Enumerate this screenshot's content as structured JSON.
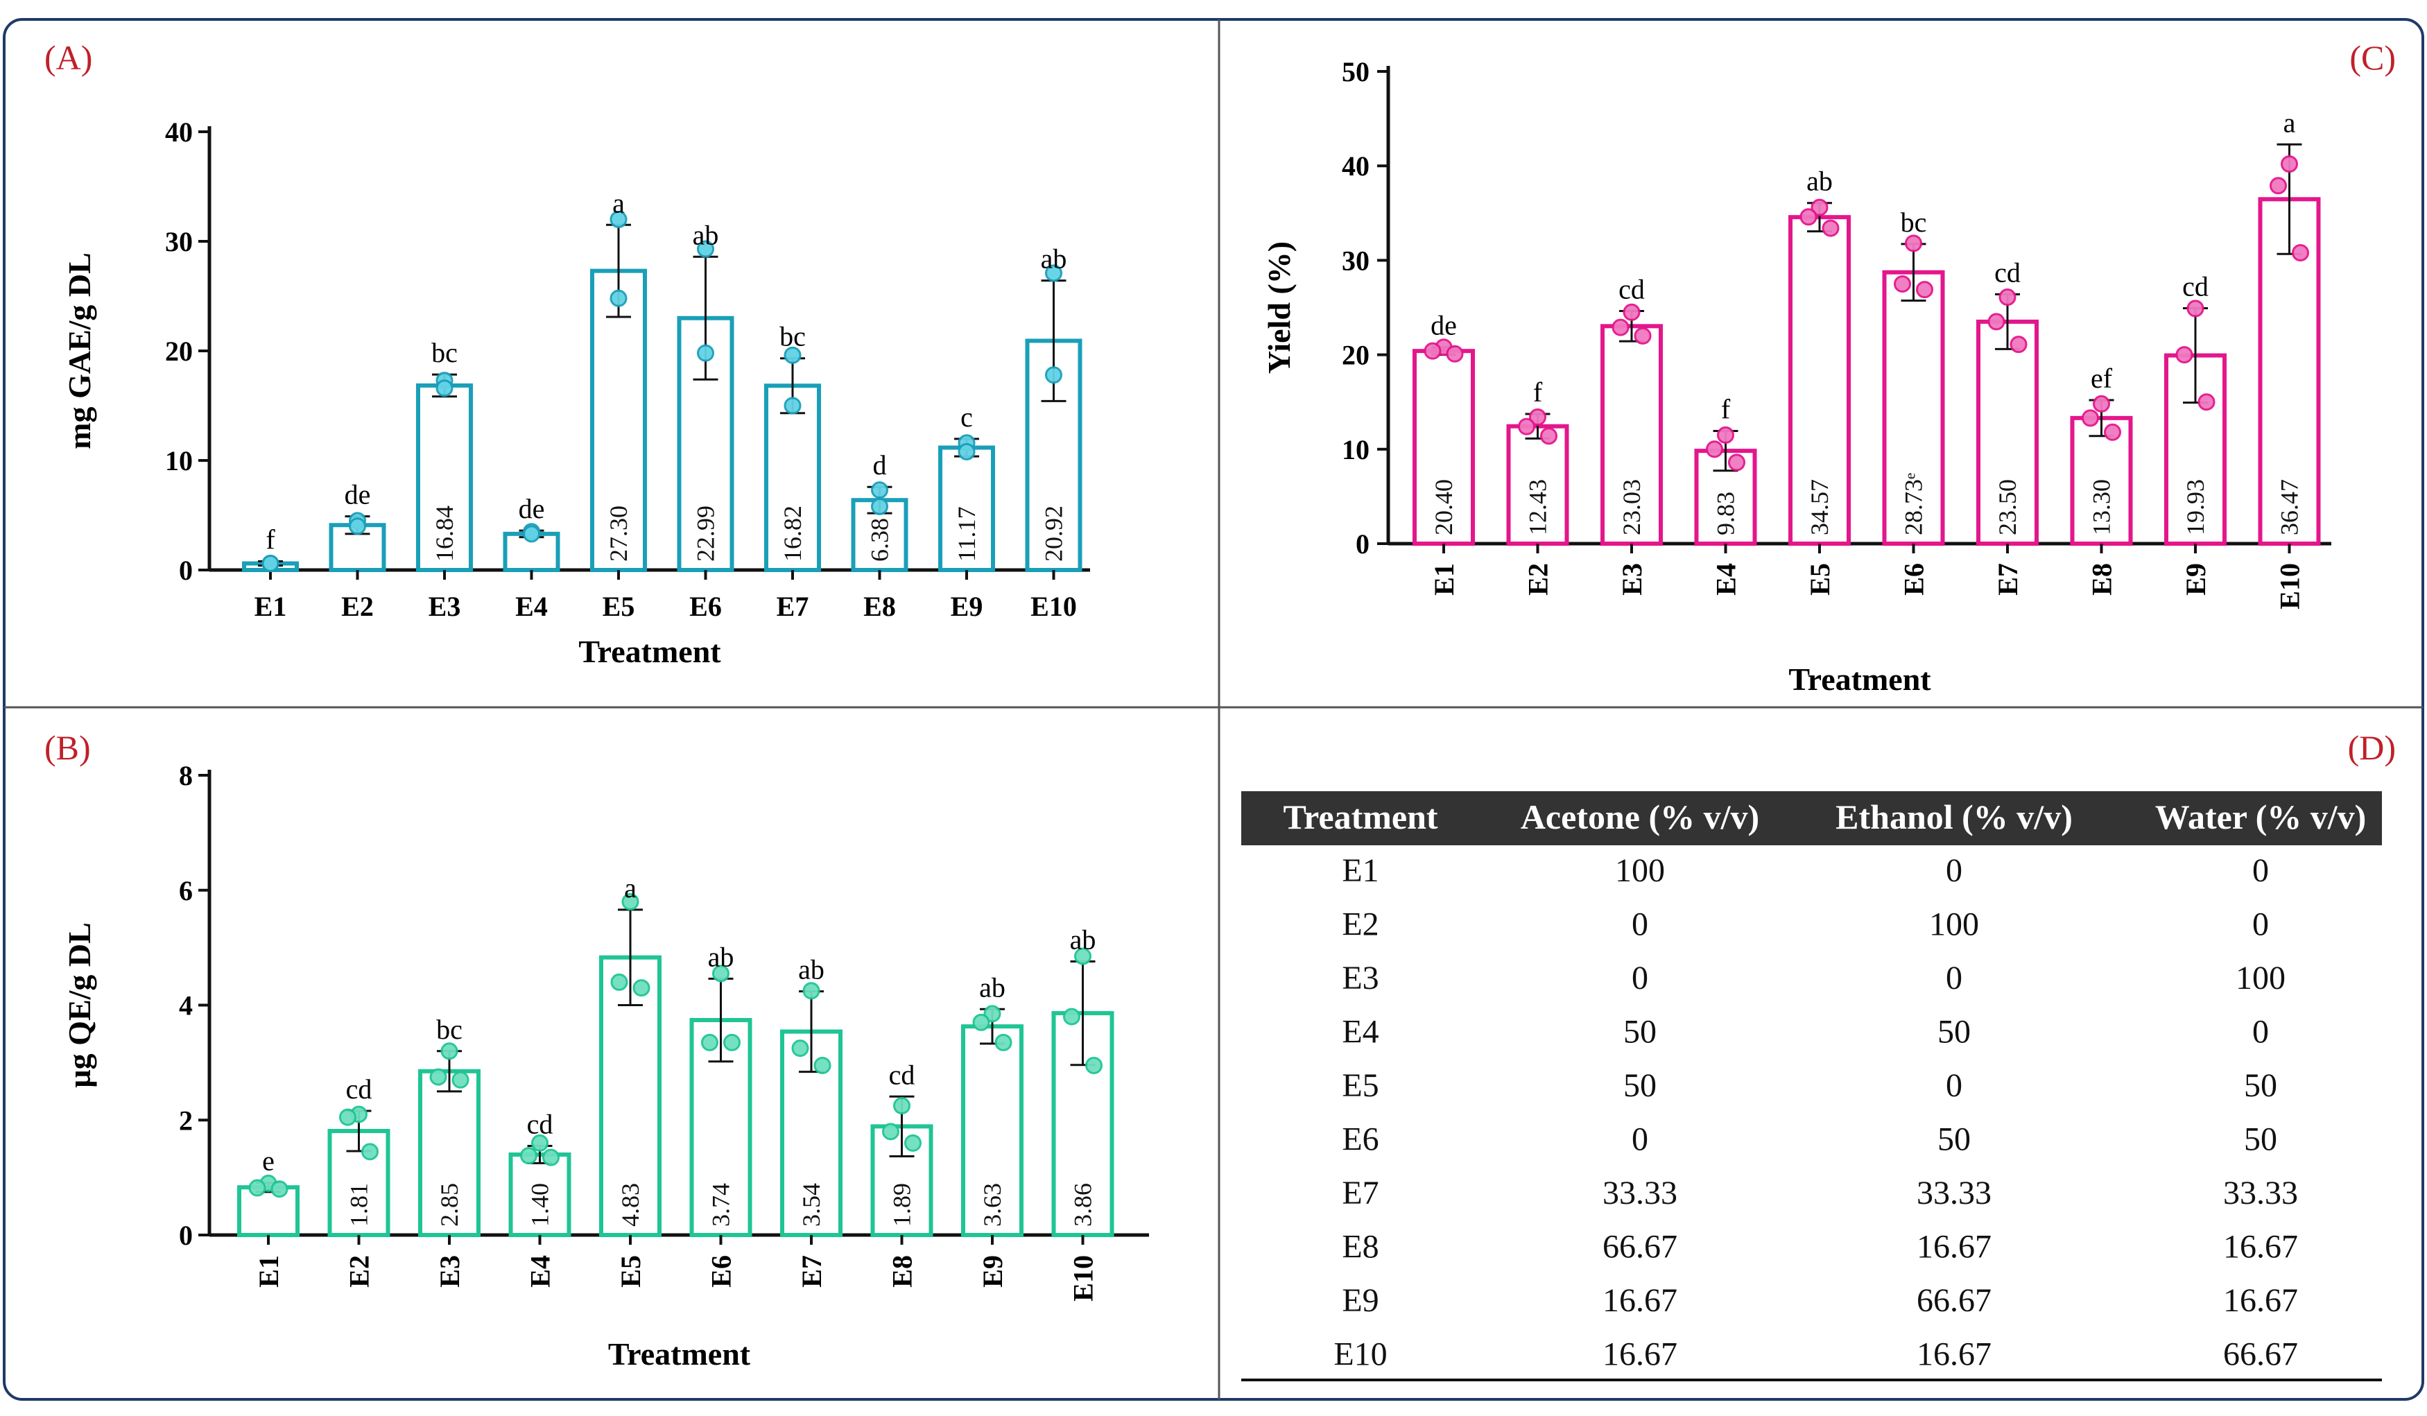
{
  "panels": {
    "A": {
      "tag": "(A)"
    },
    "B": {
      "tag": "(B)"
    },
    "C": {
      "tag": "(C)"
    },
    "D": {
      "tag": "(D)"
    }
  },
  "colors": {
    "frame": "#1f3a66",
    "tag": "#c0202a",
    "A": "#1a9fb8",
    "B": "#1fc594",
    "C": "#e4168c",
    "table_header": "#333333"
  },
  "chart_data": [
    {
      "id": "A",
      "type": "bar",
      "title": "",
      "xlabel": "Treatment",
      "ylabel": "mg GAE/g DL",
      "categories": [
        "E1",
        "E2",
        "E3",
        "E4",
        "E5",
        "E6",
        "E7",
        "E8",
        "E9",
        "E10"
      ],
      "values": [
        0.6,
        4.1,
        16.84,
        3.3,
        27.3,
        22.99,
        16.82,
        6.38,
        11.17,
        20.92
      ],
      "error": [
        0.2,
        0.8,
        1.0,
        0.3,
        4.2,
        5.6,
        2.5,
        1.2,
        0.8,
        5.5
      ],
      "value_labels": [
        "",
        "",
        "16.84",
        "",
        "27.30",
        "22.99",
        "16.82",
        "6.38",
        "11.17",
        "20.92"
      ],
      "letters": [
        "f",
        "de",
        "bc",
        "de",
        "a",
        "ab",
        "bc",
        "d",
        "c",
        "ab"
      ],
      "points": [
        [
          0.6,
          0.6
        ],
        [
          4.5,
          4.0
        ],
        [
          17.3,
          16.6
        ],
        [
          3.5,
          3.3
        ],
        [
          32.0,
          24.8
        ],
        [
          29.3,
          19.8
        ],
        [
          19.6,
          15.0
        ],
        [
          7.3,
          5.8
        ],
        [
          11.6,
          10.8
        ],
        [
          27.1,
          17.8
        ]
      ],
      "ylim": [
        0,
        40
      ],
      "yticks": [
        0,
        10,
        20,
        30,
        40
      ],
      "rotate_x": false
    },
    {
      "id": "B",
      "type": "bar",
      "title": "",
      "xlabel": "Treatment",
      "ylabel": "µg QE/g DL",
      "categories": [
        "E1",
        "E2",
        "E3",
        "E4",
        "E5",
        "E6",
        "E7",
        "E8",
        "E9",
        "E10"
      ],
      "values": [
        0.83,
        1.81,
        2.85,
        1.4,
        4.83,
        3.74,
        3.54,
        1.89,
        3.63,
        3.86
      ],
      "error": [
        0.08,
        0.35,
        0.35,
        0.15,
        0.83,
        0.72,
        0.7,
        0.52,
        0.3,
        0.9
      ],
      "value_labels": [
        "",
        "1.81",
        "2.85",
        "1.40",
        "4.83",
        "3.74",
        "3.54",
        "1.89",
        "3.63",
        "3.86"
      ],
      "letters": [
        "e",
        "cd",
        "bc",
        "cd",
        "a",
        "ab",
        "ab",
        "cd",
        "ab",
        "ab"
      ],
      "points": [
        [
          0.9,
          0.82,
          0.8
        ],
        [
          2.1,
          2.05,
          1.45
        ],
        [
          3.2,
          2.75,
          2.7
        ],
        [
          1.6,
          1.38,
          1.35
        ],
        [
          5.8,
          4.4,
          4.3
        ],
        [
          4.55,
          3.35,
          3.35
        ],
        [
          4.25,
          3.25,
          2.95
        ],
        [
          2.25,
          1.8,
          1.6
        ],
        [
          3.85,
          3.7,
          3.35
        ],
        [
          4.85,
          3.8,
          2.95
        ]
      ],
      "ylim": [
        0,
        8
      ],
      "yticks": [
        0,
        2,
        4,
        6,
        8
      ],
      "rotate_x": true
    },
    {
      "id": "C",
      "type": "bar",
      "title": "",
      "xlabel": "Treatment",
      "ylabel": "Yield (%)",
      "categories": [
        "E1",
        "E2",
        "E3",
        "E4",
        "E5",
        "E6",
        "E7",
        "E8",
        "E9",
        "E10"
      ],
      "values": [
        20.4,
        12.43,
        23.03,
        9.83,
        34.57,
        28.73,
        23.5,
        13.3,
        19.93,
        36.47
      ],
      "error": [
        0.4,
        1.3,
        1.6,
        2.1,
        1.5,
        3.0,
        2.9,
        1.9,
        5.0,
        5.8
      ],
      "value_labels": [
        "20.40",
        "12.43",
        "23.03",
        "9.83",
        "34.57",
        "28.73ᵉ",
        "23.50",
        "13.30",
        "19.93",
        "36.47"
      ],
      "letters": [
        "de",
        "f",
        "cd",
        "f",
        "ab",
        "bc",
        "cd",
        "ef",
        "cd",
        "a"
      ],
      "points": [
        [
          20.8,
          20.4,
          20.1
        ],
        [
          13.4,
          12.4,
          11.4
        ],
        [
          24.5,
          22.9,
          22.0
        ],
        [
          11.5,
          10.0,
          8.6
        ],
        [
          35.6,
          34.6,
          33.4
        ],
        [
          31.8,
          27.5,
          26.9
        ],
        [
          26.1,
          23.5,
          21.1
        ],
        [
          14.8,
          13.3,
          11.8
        ],
        [
          24.9,
          20.0,
          15.0
        ],
        [
          40.2,
          37.9,
          30.8
        ]
      ],
      "ylim": [
        0,
        50
      ],
      "yticks": [
        0,
        10,
        20,
        30,
        40,
        50
      ],
      "rotate_x": true
    }
  ],
  "table": {
    "columns": [
      "Treatment",
      "Acetone (% v/v)",
      "Ethanol (% v/v)",
      "Water (% v/v)"
    ],
    "rows": [
      [
        "E1",
        "100",
        "0",
        "0"
      ],
      [
        "E2",
        "0",
        "100",
        "0"
      ],
      [
        "E3",
        "0",
        "0",
        "100"
      ],
      [
        "E4",
        "50",
        "50",
        "0"
      ],
      [
        "E5",
        "50",
        "0",
        "50"
      ],
      [
        "E6",
        "0",
        "50",
        "50"
      ],
      [
        "E7",
        "33.33",
        "33.33",
        "33.33"
      ],
      [
        "E8",
        "66.67",
        "16.67",
        "16.67"
      ],
      [
        "E9",
        "16.67",
        "66.67",
        "16.67"
      ],
      [
        "E10",
        "16.67",
        "16.67",
        "66.67"
      ]
    ]
  }
}
